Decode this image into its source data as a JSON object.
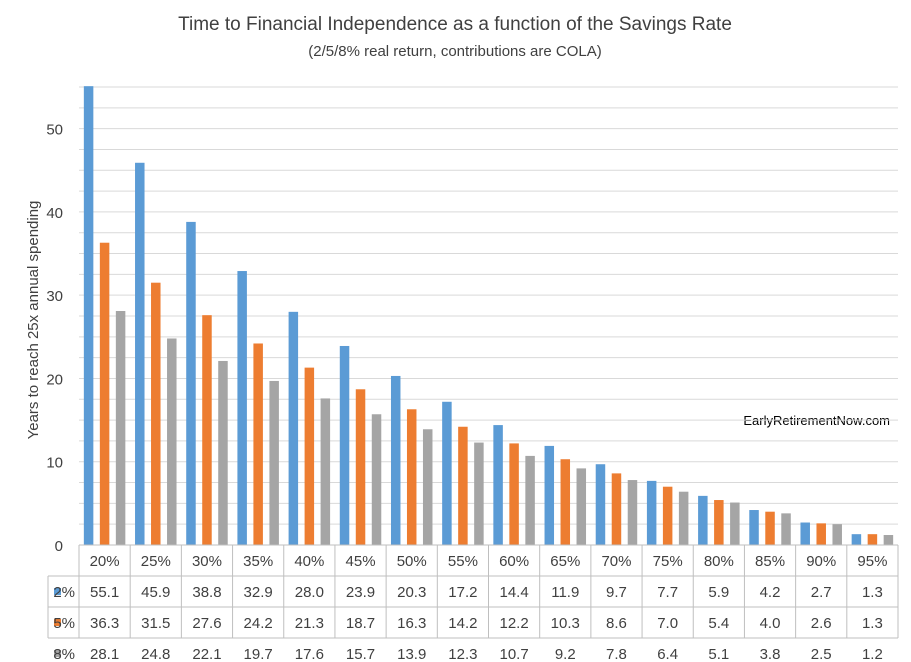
{
  "chart_data": {
    "type": "bar",
    "title": "Time to Financial Independence as a function of the Savings Rate",
    "subtitle": "(2/5/8% real return, contributions are COLA)",
    "xlabel": "",
    "ylabel": "Years to reach 25x annual spending",
    "ylim": [
      0,
      55
    ],
    "yticks": [
      0,
      10,
      20,
      30,
      40,
      50
    ],
    "grid": true,
    "annotation": "EarlyRetirementNow.com",
    "categories": [
      "20%",
      "25%",
      "30%",
      "35%",
      "40%",
      "45%",
      "50%",
      "55%",
      "60%",
      "65%",
      "70%",
      "75%",
      "80%",
      "85%",
      "90%",
      "95%"
    ],
    "series": [
      {
        "name": "2%",
        "color": "#5b9bd5",
        "values": [
          55.1,
          45.9,
          38.8,
          32.9,
          28.0,
          23.9,
          20.3,
          17.2,
          14.4,
          11.9,
          9.7,
          7.7,
          5.9,
          4.2,
          2.7,
          1.3
        ]
      },
      {
        "name": "5%",
        "color": "#ed7d31",
        "values": [
          36.3,
          31.5,
          27.6,
          24.2,
          21.3,
          18.7,
          16.3,
          14.2,
          12.2,
          10.3,
          8.6,
          7.0,
          5.4,
          4.0,
          2.6,
          1.3
        ]
      },
      {
        "name": "8%",
        "color": "#a5a5a5",
        "values": [
          28.1,
          24.8,
          22.1,
          19.7,
          17.6,
          15.7,
          13.9,
          12.3,
          10.7,
          9.2,
          7.8,
          6.4,
          5.1,
          3.8,
          2.5,
          1.2
        ]
      }
    ]
  }
}
